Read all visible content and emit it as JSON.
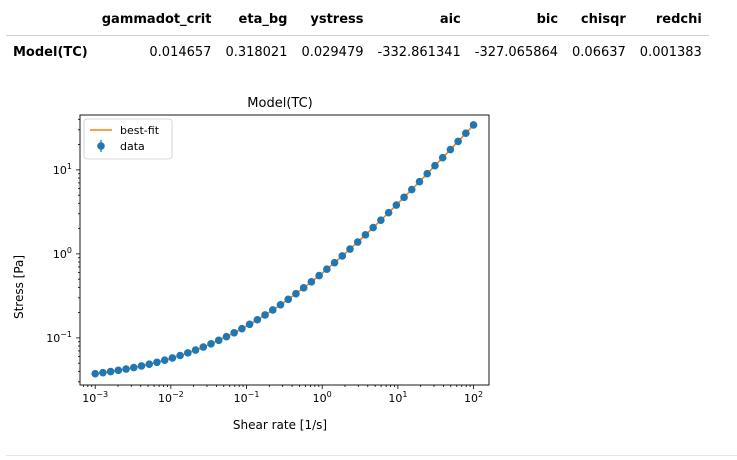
{
  "table": {
    "columns": [
      "",
      "gammadot_crit",
      "eta_bg",
      "ystress",
      "aic",
      "bic",
      "chisqr",
      "redchi"
    ],
    "rows": [
      {
        "label": "Model(TC)",
        "values": [
          "0.014657",
          "0.318021",
          "0.029479",
          "-332.861341",
          "-327.065864",
          "0.06637",
          "0.001383"
        ]
      }
    ]
  },
  "chart_data": {
    "type": "scatter",
    "title": "Model(TC)",
    "xlabel": "Shear rate [1/s]",
    "ylabel": "Stress [Pa]",
    "xscale": "log",
    "yscale": "log",
    "xlim": [
      0.00063,
      160
    ],
    "ylim": [
      0.0275,
      45
    ],
    "x_ticks": [
      0.001,
      0.01,
      0.1,
      1,
      10,
      100
    ],
    "x_tick_labels": [
      {
        "base": "10",
        "exp": "−3"
      },
      {
        "base": "10",
        "exp": "−2"
      },
      {
        "base": "10",
        "exp": "−1"
      },
      {
        "base": "10",
        "exp": "0"
      },
      {
        "base": "10",
        "exp": "1"
      },
      {
        "base": "10",
        "exp": "2"
      }
    ],
    "y_ticks": [
      0.1,
      1,
      10
    ],
    "y_tick_labels": [
      {
        "base": "10",
        "exp": "−1"
      },
      {
        "base": "10",
        "exp": "0"
      },
      {
        "base": "10",
        "exp": "1"
      }
    ],
    "legend": {
      "position": "top-left",
      "entries": [
        "best-fit",
        "data"
      ]
    },
    "series": [
      {
        "name": "best-fit",
        "kind": "line",
        "color": "#ff7f0e",
        "model": "tc",
        "params": {
          "gammadot_crit": 0.014657,
          "eta_bg": 0.318021,
          "ystress": 0.029479
        }
      },
      {
        "name": "data",
        "kind": "scatter",
        "color": "#1f77b4",
        "x_log_range": [
          -3,
          2
        ],
        "points": 50,
        "model": "tc"
      }
    ]
  }
}
